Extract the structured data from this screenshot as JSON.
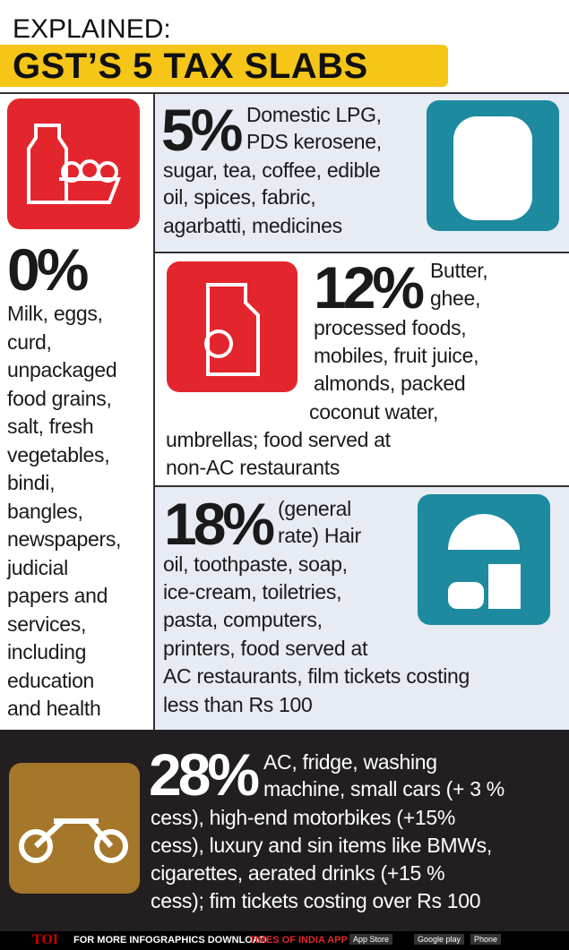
{
  "header": {
    "kicker": "EXPLAINED:",
    "title": "GST’S 5 TAX SLABS"
  },
  "slabs": [
    {
      "rate": "0%",
      "lines": [
        "Milk, eggs,",
        "curd,",
        "unpackaged",
        "food grains,",
        "salt, fresh",
        "vegetables,",
        "bindi,",
        "bangles,",
        "newspapers,",
        "judicial",
        "papers and",
        "services,",
        "including",
        "education",
        "and health"
      ]
    },
    {
      "rate": "5%",
      "lines": [
        "Domestic LPG,",
        "PDS kerosene,",
        "sugar, tea, coffee, edible",
        "oil, spices, fabric,",
        "agarbatti, medicines"
      ]
    },
    {
      "rate": "12%",
      "lines": [
        "Butter,",
        "ghee,",
        "processed foods,",
        "mobiles, fruit juice,",
        "almonds, packed",
        "coconut water,",
        "umbrellas; food served at",
        "non-AC restaurants"
      ]
    },
    {
      "rate": "18%",
      "lines": [
        "(general",
        "rate) Hair",
        "oil, toothpaste, soap,",
        "ice-cream, toiletries,",
        "pasta, computers,",
        "printers, food served at",
        "AC restaurants, film tickets costing",
        "less than Rs 100"
      ]
    },
    {
      "rate": "28%",
      "lines": [
        "AC, fridge, washing",
        "machine, small cars (+ 3 %",
        "cess), high-end motorbikes (+15%",
        "cess), luxury and sin items like BMWs,",
        "cigarettes, aerated drinks (+15 %",
        "cess); fim tickets costing over Rs 100"
      ]
    }
  ],
  "footer": {
    "logo": "TOI",
    "text": "FOR MORE INFOGRAPHICS DOWNLOAD",
    "brand": "TIMES OF INDIA APP",
    "stores": [
      "App Store",
      "Google play",
      "Phone"
    ]
  }
}
